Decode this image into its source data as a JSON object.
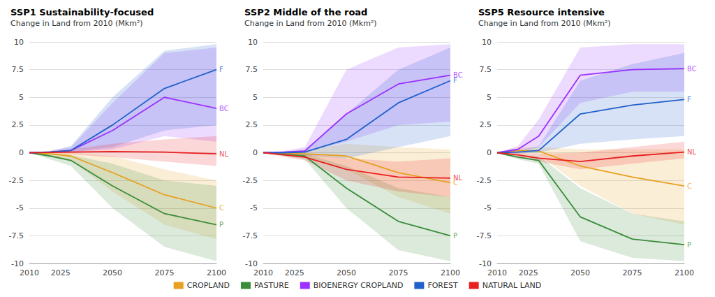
{
  "chart_data": [
    {
      "type": "line",
      "title": "SSP1 Sustainability-focused",
      "subtitle": "Change in Land from 2010 (Mkm²)",
      "x": [
        2010,
        2020,
        2030,
        2050,
        2075,
        2100
      ],
      "xlim": [
        2010,
        2100
      ],
      "xticks": [
        2010,
        2025,
        2050,
        2075,
        2100
      ],
      "ylim": [
        -10,
        10
      ],
      "yticks": [
        -10,
        -7.5,
        -5,
        -2.5,
        0,
        2.5,
        5,
        7.5,
        10
      ],
      "grid": true,
      "legend": "bottom",
      "series": [
        {
          "name": "CROPLAND",
          "color": "#E8A020",
          "values": [
            0,
            -0.1,
            -0.3,
            -1.8,
            -3.8,
            -5.0
          ],
          "lo": [
            0,
            -0.3,
            -0.7,
            -3.5,
            -6.5,
            -7.8
          ],
          "hi": [
            0,
            0.0,
            0.0,
            -0.3,
            -1.5,
            -2.5
          ]
        },
        {
          "name": "PASTURE",
          "color": "#3a8c3a",
          "values": [
            0,
            -0.3,
            -0.7,
            -3.0,
            -5.5,
            -6.5
          ],
          "lo": [
            0,
            -0.6,
            -1.2,
            -5.0,
            -8.5,
            -9.8
          ],
          "hi": [
            0,
            -0.1,
            -0.2,
            -1.0,
            -2.5,
            -3.0
          ]
        },
        {
          "name": "BIOENERGY CROPLAND",
          "color": "#9B30FF",
          "values": [
            0,
            0.05,
            0.2,
            2.0,
            5.0,
            4.0
          ],
          "lo": [
            0,
            0.0,
            0.05,
            0.3,
            1.5,
            1.0
          ],
          "hi": [
            0,
            0.15,
            0.5,
            4.5,
            9.0,
            9.5
          ]
        },
        {
          "name": "FOREST",
          "color": "#2060CC",
          "values": [
            0,
            0.05,
            0.2,
            2.5,
            5.8,
            7.5
          ],
          "lo": [
            0,
            0.0,
            0.05,
            0.5,
            2.0,
            2.5
          ],
          "hi": [
            0,
            0.15,
            0.6,
            5.0,
            9.2,
            9.8
          ]
        },
        {
          "name": "NATURAL LAND",
          "color": "#E82020",
          "values": [
            0,
            0.02,
            0.05,
            0.1,
            0.05,
            -0.1
          ],
          "lo": [
            0,
            -0.1,
            -0.15,
            -0.4,
            -0.8,
            -1.2
          ],
          "hi": [
            0,
            0.15,
            0.3,
            0.8,
            1.2,
            1.5
          ]
        }
      ],
      "annotations": [
        {
          "text": "C",
          "y": -5.0,
          "color": "#E8A020"
        },
        {
          "text": "P",
          "y": -6.5,
          "color": "#3a8c3a"
        },
        {
          "text": "BC",
          "y": 4.0,
          "color": "#9B30FF"
        },
        {
          "text": "F",
          "y": 7.5,
          "color": "#2060CC"
        },
        {
          "text": "NL",
          "y": -0.1,
          "color": "#E82020"
        }
      ]
    },
    {
      "type": "line",
      "title": "SSP2 Middle of the road",
      "subtitle": "Change in Land from 2010 (Mkm²)",
      "x": [
        2010,
        2020,
        2030,
        2050,
        2075,
        2100
      ],
      "xlim": [
        2010,
        2100
      ],
      "xticks": [
        2010,
        2025,
        2050,
        2075,
        2100
      ],
      "ylim": [
        -10,
        10
      ],
      "yticks": [
        -10,
        -7.5,
        -5,
        -2.5,
        0,
        2.5,
        5,
        7.5,
        10
      ],
      "grid": true,
      "legend": "bottom",
      "series": [
        {
          "name": "CROPLAND",
          "color": "#E8A020",
          "values": [
            0,
            -0.05,
            -0.1,
            -0.3,
            -1.8,
            -2.7
          ],
          "lo": [
            0,
            -0.2,
            -0.4,
            -1.5,
            -4.0,
            -5.5
          ],
          "hi": [
            0,
            0.1,
            0.2,
            0.8,
            0.5,
            0.3
          ]
        },
        {
          "name": "PASTURE",
          "color": "#3a8c3a",
          "values": [
            0,
            -0.15,
            -0.3,
            -3.2,
            -6.2,
            -7.5
          ],
          "lo": [
            0,
            -0.3,
            -0.6,
            -5.0,
            -8.8,
            -9.8
          ],
          "hi": [
            0,
            -0.05,
            -0.1,
            -1.2,
            -3.2,
            -4.0
          ]
        },
        {
          "name": "BIOENERGY CROPLAND",
          "color": "#9B30FF",
          "values": [
            0,
            0.05,
            0.15,
            3.5,
            6.2,
            7.0
          ],
          "lo": [
            0,
            0.0,
            0.05,
            1.0,
            2.5,
            2.8
          ],
          "hi": [
            0,
            0.15,
            0.5,
            7.5,
            9.5,
            9.8
          ]
        },
        {
          "name": "FOREST",
          "color": "#2060CC",
          "values": [
            0,
            0.0,
            0.05,
            1.2,
            4.5,
            6.5
          ],
          "lo": [
            0,
            -0.15,
            -0.25,
            -0.5,
            0.5,
            1.5
          ],
          "hi": [
            0,
            0.1,
            0.3,
            3.5,
            7.5,
            9.5
          ]
        },
        {
          "name": "NATURAL LAND",
          "color": "#E82020",
          "values": [
            0,
            -0.2,
            -0.4,
            -1.5,
            -2.2,
            -2.3
          ],
          "lo": [
            0,
            -0.4,
            -0.7,
            -2.5,
            -3.5,
            -4.0
          ],
          "hi": [
            0,
            -0.05,
            -0.1,
            -0.5,
            -0.8,
            -0.5
          ]
        }
      ],
      "annotations": [
        {
          "text": "C",
          "y": -2.7,
          "color": "#E8A020"
        },
        {
          "text": "P",
          "y": -7.5,
          "color": "#3a8c3a"
        },
        {
          "text": "BC",
          "y": 7.0,
          "color": "#9B30FF"
        },
        {
          "text": "F",
          "y": 6.5,
          "color": "#2060CC"
        },
        {
          "text": "NL",
          "y": -2.3,
          "color": "#E82020"
        }
      ]
    },
    {
      "type": "line",
      "title": "SSP5 Resource intensive",
      "subtitle": "Change in Land from 2010 (Mkm²)",
      "x": [
        2010,
        2020,
        2030,
        2050,
        2075,
        2100
      ],
      "xlim": [
        2010,
        2100
      ],
      "xticks": [
        2010,
        2025,
        2050,
        2075,
        2100
      ],
      "ylim": [
        -10,
        10
      ],
      "yticks": [
        -10,
        -7.5,
        -5,
        -2.5,
        0,
        2.5,
        5,
        7.5,
        10
      ],
      "grid": true,
      "legend": "bottom",
      "series": [
        {
          "name": "CROPLAND",
          "color": "#E8A020",
          "values": [
            0,
            0.2,
            0.15,
            -1.2,
            -2.2,
            -3.0
          ],
          "lo": [
            0,
            -0.1,
            -0.2,
            -3.0,
            -5.5,
            -6.5
          ],
          "hi": [
            0,
            0.5,
            0.5,
            0.3,
            0.3,
            0.3
          ]
        },
        {
          "name": "PASTURE",
          "color": "#3a8c3a",
          "values": [
            0,
            -0.4,
            -0.7,
            -5.8,
            -7.8,
            -8.3
          ],
          "lo": [
            0,
            -0.6,
            -1.0,
            -8.0,
            -9.5,
            -9.8
          ],
          "hi": [
            0,
            -0.15,
            -0.3,
            -3.2,
            -5.5,
            -6.2
          ]
        },
        {
          "name": "BIOENERGY CROPLAND",
          "color": "#9B30FF",
          "values": [
            0,
            0.3,
            1.5,
            7.0,
            7.5,
            7.6
          ],
          "lo": [
            0,
            0.1,
            0.5,
            4.5,
            5.5,
            5.5
          ],
          "hi": [
            0,
            0.6,
            3.0,
            9.5,
            9.8,
            9.8
          ]
        },
        {
          "name": "FOREST",
          "color": "#2060CC",
          "values": [
            0,
            0.05,
            0.2,
            3.5,
            4.3,
            4.8
          ],
          "lo": [
            0,
            -0.1,
            0.0,
            0.8,
            1.2,
            1.5
          ],
          "hi": [
            0,
            0.2,
            0.6,
            6.5,
            8.0,
            9.0
          ]
        },
        {
          "name": "NATURAL LAND",
          "color": "#E82020",
          "values": [
            0,
            -0.2,
            -0.5,
            -0.8,
            -0.3,
            0.05
          ],
          "lo": [
            0,
            -0.4,
            -0.8,
            -1.5,
            -1.0,
            -0.5
          ],
          "hi": [
            0,
            -0.05,
            -0.1,
            0.0,
            0.5,
            1.0
          ]
        }
      ],
      "annotations": [
        {
          "text": "C",
          "y": -3.0,
          "color": "#E8A020"
        },
        {
          "text": "P",
          "y": -8.3,
          "color": "#3a8c3a"
        },
        {
          "text": "BC",
          "y": 7.6,
          "color": "#9B30FF"
        },
        {
          "text": "F",
          "y": 4.8,
          "color": "#2060CC"
        },
        {
          "text": "NL",
          "y": 0.05,
          "color": "#E82020"
        }
      ]
    }
  ]
}
